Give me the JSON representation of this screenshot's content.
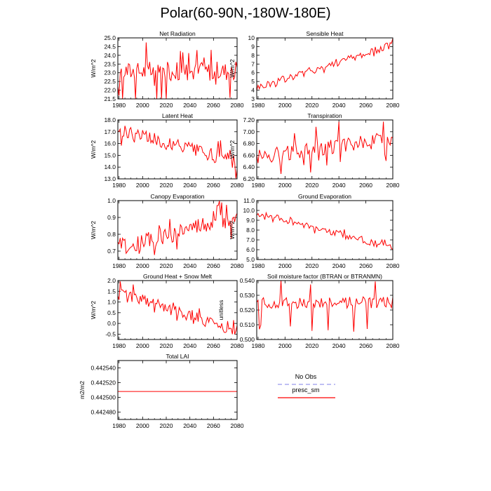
{
  "figure": {
    "title": "Polar(60-90N,-180W-180E)"
  },
  "legend": {
    "entries": [
      {
        "name": "No Obs",
        "color": "#9999ee",
        "style": "dashed"
      },
      {
        "name": "presc_sm",
        "color": "#ff0000",
        "style": "solid"
      }
    ]
  },
  "chart_data": [
    {
      "type": "line",
      "title": "Net Radiation",
      "ylabel": "W/m^2",
      "x": [
        1979,
        2080
      ],
      "xticks": [
        1980,
        2000,
        2020,
        2040,
        2060,
        2080
      ],
      "ylim": [
        21.5,
        25.0
      ],
      "yticks": [
        21.5,
        22.0,
        22.5,
        23.0,
        23.5,
        24.0,
        24.5,
        25.0
      ],
      "ytick_decimals": 1,
      "series": [
        {
          "name": "presc_sm",
          "color": "#ff0000",
          "trend": [
            23.1,
            23.1
          ],
          "amplitude": 0.55,
          "spike": 1.3
        }
      ]
    },
    {
      "type": "line",
      "title": "Sensible Heat",
      "ylabel": "W/m^2",
      "x": [
        1979,
        2080
      ],
      "xticks": [
        1980,
        2000,
        2020,
        2040,
        2060,
        2080
      ],
      "ylim": [
        3,
        10
      ],
      "yticks": [
        3,
        4,
        5,
        6,
        7,
        8,
        9,
        10
      ],
      "ytick_decimals": 0,
      "series": [
        {
          "name": "presc_sm",
          "color": "#ff0000",
          "trend": [
            4.3,
            9.2
          ],
          "amplitude": 0.45,
          "spike": 0.5
        }
      ]
    },
    {
      "type": "line",
      "title": "Latent Heat",
      "ylabel": "W/m^2",
      "x": [
        1979,
        2080
      ],
      "xticks": [
        1980,
        2000,
        2020,
        2040,
        2060,
        2080
      ],
      "ylim": [
        13.0,
        18.0
      ],
      "yticks": [
        13.0,
        14.0,
        15.0,
        16.0,
        17.0,
        18.0
      ],
      "ytick_decimals": 1,
      "series": [
        {
          "name": "presc_sm",
          "color": "#ff0000",
          "trend": [
            17.2,
            14.4
          ],
          "amplitude": 0.6,
          "spike": 0.9
        }
      ]
    },
    {
      "type": "line",
      "title": "Transpiration",
      "ylabel": "W/m^2",
      "x": [
        1979,
        2080
      ],
      "xticks": [
        1980,
        2000,
        2020,
        2040,
        2060,
        2080
      ],
      "ylim": [
        6.2,
        7.2
      ],
      "yticks": [
        6.2,
        6.4,
        6.6,
        6.8,
        7.0,
        7.2
      ],
      "ytick_decimals": 2,
      "series": [
        {
          "name": "presc_sm",
          "color": "#ff0000",
          "trend": [
            6.58,
            6.88
          ],
          "amplitude": 0.13,
          "spike": 0.3
        }
      ]
    },
    {
      "type": "line",
      "title": "Canopy Evaporation",
      "ylabel": "W/m^2",
      "x": [
        1979,
        2080
      ],
      "xticks": [
        1980,
        2000,
        2020,
        2040,
        2060,
        2080
      ],
      "ylim": [
        0.65,
        1.0
      ],
      "yticks": [
        0.7,
        0.8,
        0.9,
        1.0
      ],
      "ytick_decimals": 1,
      "series": [
        {
          "name": "presc_sm",
          "color": "#ff0000",
          "trend": [
            0.72,
            0.9
          ],
          "amplitude": 0.05,
          "spike": 0.08
        }
      ]
    },
    {
      "type": "line",
      "title": "Ground Evaporation",
      "ylabel": "W/m^2",
      "x": [
        1979,
        2080
      ],
      "xticks": [
        1980,
        2000,
        2020,
        2040,
        2060,
        2080
      ],
      "ylim": [
        5.0,
        11.0
      ],
      "yticks": [
        5.0,
        6.0,
        7.0,
        8.0,
        9.0,
        10.0,
        11.0
      ],
      "ytick_decimals": 1,
      "series": [
        {
          "name": "presc_sm",
          "color": "#ff0000",
          "trend": [
            9.8,
            6.2
          ],
          "amplitude": 0.35,
          "spike": 0.4
        }
      ]
    },
    {
      "type": "line",
      "title": "Ground Heat + Snow Melt",
      "ylabel": "W/m^2",
      "x": [
        1979,
        2080
      ],
      "xticks": [
        1980,
        2000,
        2020,
        2040,
        2060,
        2080
      ],
      "ylim": [
        -0.75,
        2.0
      ],
      "yticks": [
        -0.5,
        0.0,
        0.5,
        1.0,
        1.5,
        2.0
      ],
      "ytick_decimals": 1,
      "series": [
        {
          "name": "presc_sm",
          "color": "#ff0000",
          "trend": [
            1.4,
            -0.3
          ],
          "amplitude": 0.3,
          "spike": 0.35
        }
      ]
    },
    {
      "type": "line",
      "title": "Soil moisture factor (BTRAN or BTRANMN)",
      "ylabel": "unitless",
      "x": [
        1979,
        2080
      ],
      "xticks": [
        1980,
        2000,
        2020,
        2040,
        2060,
        2080
      ],
      "ylim": [
        0.5,
        0.54
      ],
      "yticks": [
        0.5,
        0.51,
        0.52,
        0.53,
        0.54
      ],
      "ytick_decimals": 3,
      "series": [
        {
          "name": "presc_sm",
          "color": "#ff0000",
          "trend": [
            0.525,
            0.525
          ],
          "amplitude": 0.004,
          "spike": 0.016
        }
      ]
    },
    {
      "type": "line",
      "title": "Total LAI",
      "ylabel": "m2/m2",
      "x": [
        1979,
        2080
      ],
      "xticks": [
        1980,
        2000,
        2020,
        2040,
        2060,
        2080
      ],
      "ylim": [
        0.44247,
        0.44255
      ],
      "yticks": [
        0.44248,
        0.4425,
        0.44252,
        0.44254
      ],
      "ytick_decimals": 6,
      "series": [
        {
          "name": "presc_sm",
          "color": "#ff0000",
          "trend": [
            0.442508,
            0.442508
          ],
          "amplitude": 0,
          "spike": 0
        }
      ]
    }
  ]
}
